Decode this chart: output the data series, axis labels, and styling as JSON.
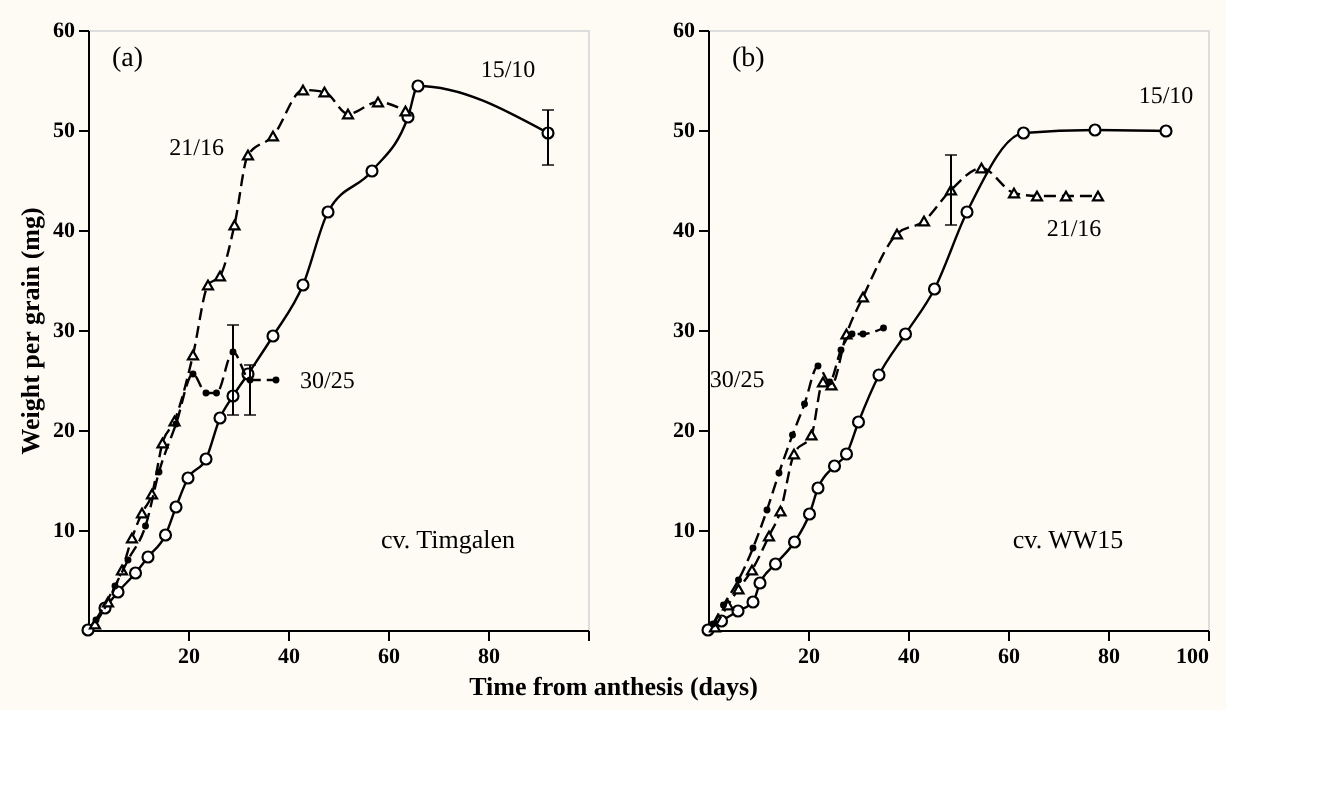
{
  "chart_data": [
    {
      "type": "line",
      "xlabel": "Time from anthesis (days)",
      "ylabel": "Weight per grain (mg)",
      "annotations": [
        "(a)",
        "cv. Timgalen"
      ],
      "xlim": [
        0,
        100
      ],
      "xticks": [
        20,
        40,
        60,
        80,
        {
          "value": 100,
          "label": null
        }
      ],
      "ylim": [
        0,
        60
      ],
      "yticks": [
        10,
        20,
        30,
        40,
        50,
        60
      ],
      "grid": false,
      "series": [
        {
          "name": "15/10",
          "color": "#000000",
          "marker": "circle",
          "line_style": "solid",
          "x": [
            0,
            3.4,
            6,
            9.5,
            12,
            15.5,
            17.6,
            20,
            23.6,
            26.4,
            29,
            32,
            37,
            43,
            48,
            56.8,
            64,
            66,
            92
          ],
          "values": [
            0,
            2.2,
            3.8,
            5.7,
            7.3,
            9.5,
            12.3,
            15.2,
            17.1,
            21.2,
            23.4,
            25.6,
            29.4,
            34.5,
            41.8,
            45.9,
            51.3,
            54.4,
            49.7
          ],
          "errors": [
            null,
            null,
            null,
            null,
            null,
            null,
            null,
            null,
            null,
            null,
            null,
            null,
            null,
            null,
            null,
            null,
            null,
            null,
            [
              46.5,
              52
            ]
          ]
        },
        {
          "name": "21/16",
          "color": "#000000",
          "marker": "triangle",
          "line_style": "dashed",
          "x": [
            1.4,
            4,
            6.8,
            8.8,
            10.8,
            12.8,
            14.9,
            17.3,
            21,
            24,
            26.4,
            29.3,
            32,
            37,
            43,
            47.3,
            52,
            58,
            63.5
          ],
          "values": [
            0.6,
            2.8,
            6,
            9.2,
            11.7,
            13.6,
            18.7,
            20.9,
            27.5,
            34.5,
            35.4,
            40.5,
            47.5,
            49.4,
            54,
            53.8,
            51.6,
            52.8,
            51.9
          ]
        },
        {
          "name": "30/25",
          "color": "#000000",
          "marker": "dot",
          "line_style": "dashed",
          "x": [
            1.6,
            5.4,
            8,
            11.5,
            14.2,
            17.6,
            21,
            23.6,
            25.7,
            29,
            32.4,
            37.6
          ],
          "values": [
            1,
            4.4,
            7,
            10.4,
            15.8,
            20.6,
            25.6,
            23.7,
            23.7,
            27.8,
            25,
            25
          ],
          "errors": [
            null,
            null,
            null,
            null,
            null,
            null,
            null,
            null,
            null,
            [
              21.5,
              30.5
            ],
            [
              21.5,
              26.5
            ],
            null
          ]
        }
      ]
    },
    {
      "type": "line",
      "annotations": [
        "(b)",
        "cv. WW15"
      ],
      "xlim": [
        0,
        100
      ],
      "xticks": [
        20,
        40,
        60,
        80,
        100
      ],
      "ylim": [
        0,
        60
      ],
      "yticks": [
        10,
        20,
        30,
        40,
        50,
        60
      ],
      "grid": false,
      "series": [
        {
          "name": "15/10",
          "color": "#000000",
          "marker": "circle",
          "line_style": "solid",
          "x": [
            0,
            2.7,
            6,
            9,
            10.4,
            13.5,
            17.3,
            20.3,
            22,
            25.3,
            27.7,
            30.1,
            34.2,
            39.5,
            45.3,
            51.8,
            63.1,
            77.4,
            91.6
          ],
          "values": [
            0,
            0.9,
            1.9,
            2.8,
            4.7,
            6.6,
            8.8,
            11.6,
            14.2,
            16.4,
            17.6,
            20.8,
            25.5,
            29.6,
            34.1,
            41.8,
            49.7,
            50,
            49.9
          ]
        },
        {
          "name": "21/16",
          "color": "#000000",
          "marker": "triangle",
          "line_style": "dashed",
          "x": [
            1.4,
            4,
            6.1,
            8.8,
            12.2,
            14.5,
            17.2,
            20.7,
            23,
            24.7,
            27.7,
            31,
            37.8,
            43.2,
            48.6,
            54.7,
            61.2,
            65.8,
            71.6,
            78
          ],
          "values": [
            0.3,
            2.5,
            4.1,
            6,
            9.4,
            11.9,
            17.6,
            19.5,
            24.8,
            24.5,
            29.6,
            33.3,
            39.6,
            40.9,
            44,
            46.2,
            43.7,
            43.4,
            43.4,
            43.4
          ],
          "errors": [
            null,
            null,
            null,
            null,
            null,
            null,
            null,
            null,
            null,
            null,
            null,
            null,
            null,
            null,
            [
              40.5,
              47.5
            ],
            null,
            null,
            null,
            null,
            null
          ]
        },
        {
          "name": "30/25",
          "color": "#000000",
          "marker": "dot",
          "line_style": "dashed",
          "x": [
            1,
            3.1,
            6.1,
            9,
            11.8,
            14.2,
            16.9,
            19.3,
            22,
            24.3,
            26.6,
            28.8,
            31,
            35.1
          ],
          "values": [
            0.6,
            2.5,
            5,
            8.2,
            12,
            15.7,
            19.5,
            22.6,
            26.4,
            24.8,
            28,
            29.6,
            29.6,
            30.2
          ]
        }
      ]
    }
  ]
}
